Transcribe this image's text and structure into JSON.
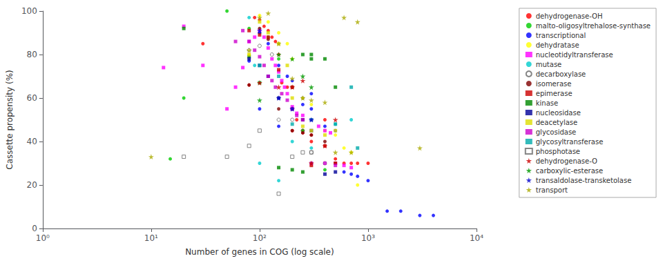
{
  "chart_data": {
    "type": "scatter",
    "xlabel": "Number of genes in COG (log scale)",
    "ylabel": "Cassette propensity (%)",
    "log": "x",
    "xlim": [
      1,
      10000
    ],
    "xticks": [
      {
        "value": 1,
        "label": "10⁰"
      },
      {
        "value": 10,
        "label": "10¹"
      },
      {
        "value": 100,
        "label": "10²"
      },
      {
        "value": 1000,
        "label": "10³"
      },
      {
        "value": 10000,
        "label": "10⁴"
      }
    ],
    "ylim": [
      0,
      100
    ],
    "yticks": [
      0,
      20,
      40,
      60,
      80,
      100
    ],
    "grid": false,
    "legend": "right",
    "series": [
      {
        "name": "dehydrogenase-OH",
        "color": "#ff0000",
        "marker": "circle",
        "values": [
          [
            30,
            85
          ],
          [
            90,
            97
          ],
          [
            100,
            96
          ],
          [
            110,
            93
          ],
          [
            120,
            91
          ],
          [
            130,
            88
          ],
          [
            140,
            86
          ],
          [
            150,
            80
          ],
          [
            160,
            67
          ],
          [
            180,
            65
          ],
          [
            200,
            55
          ],
          [
            220,
            50
          ],
          [
            250,
            45
          ],
          [
            300,
            40
          ],
          [
            400,
            50
          ],
          [
            500,
            32
          ],
          [
            600,
            30
          ],
          [
            700,
            30
          ],
          [
            800,
            30
          ],
          [
            1000,
            30
          ],
          [
            80,
            66
          ],
          [
            200,
            45
          ],
          [
            250,
            44
          ],
          [
            300,
            43
          ]
        ]
      },
      {
        "name": "malto-oligosyltrehalose-synthase",
        "color": "#00cc00",
        "marker": "circle",
        "values": [
          [
            15,
            32
          ],
          [
            20,
            60
          ],
          [
            50,
            100
          ],
          [
            80,
            92
          ],
          [
            100,
            90
          ],
          [
            120,
            88
          ],
          [
            150,
            78
          ],
          [
            200,
            65
          ],
          [
            250,
            45
          ],
          [
            300,
            30
          ],
          [
            400,
            27
          ]
        ]
      },
      {
        "name": "transcriptional",
        "color": "#0000ff",
        "marker": "circle",
        "values": [
          [
            80,
            77
          ],
          [
            100,
            90
          ],
          [
            120,
            85
          ],
          [
            150,
            75
          ],
          [
            180,
            70
          ],
          [
            200,
            68
          ],
          [
            250,
            57
          ],
          [
            300,
            55
          ],
          [
            400,
            47
          ],
          [
            500,
            45
          ],
          [
            600,
            26
          ],
          [
            700,
            25
          ],
          [
            800,
            24
          ],
          [
            1000,
            22
          ],
          [
            1500,
            8
          ],
          [
            2000,
            8
          ],
          [
            3000,
            6
          ],
          [
            4000,
            6
          ],
          [
            100,
            55
          ],
          [
            150,
            47
          ],
          [
            250,
            60
          ],
          [
            300,
            62
          ]
        ]
      },
      {
        "name": "dehydratase",
        "color": "#ffff00",
        "marker": "circle",
        "values": [
          [
            80,
            80
          ],
          [
            100,
            98
          ],
          [
            120,
            95
          ],
          [
            150,
            90
          ],
          [
            180,
            85
          ],
          [
            200,
            78
          ],
          [
            250,
            60
          ],
          [
            300,
            57
          ],
          [
            400,
            45
          ],
          [
            500,
            43
          ],
          [
            600,
            37
          ],
          [
            700,
            35
          ],
          [
            800,
            20
          ]
        ]
      },
      {
        "name": "nucleotidyltransferase",
        "color": "#ff00ff",
        "marker": "square",
        "values": [
          [
            13,
            74
          ],
          [
            20,
            93
          ],
          [
            30,
            75
          ],
          [
            50,
            55
          ],
          [
            60,
            65
          ],
          [
            70,
            74
          ],
          [
            80,
            86
          ],
          [
            90,
            88
          ],
          [
            100,
            91
          ],
          [
            110,
            88
          ],
          [
            120,
            83
          ],
          [
            130,
            78
          ],
          [
            140,
            75
          ],
          [
            150,
            72
          ],
          [
            160,
            68
          ],
          [
            170,
            65
          ],
          [
            180,
            62
          ],
          [
            200,
            56
          ],
          [
            220,
            53
          ],
          [
            250,
            52
          ],
          [
            300,
            50
          ],
          [
            350,
            47
          ],
          [
            400,
            45
          ],
          [
            450,
            44
          ],
          [
            500,
            30
          ],
          [
            600,
            29
          ],
          [
            700,
            28
          ]
        ]
      },
      {
        "name": "mutase",
        "color": "#00cccc",
        "marker": "circle",
        "values": [
          [
            80,
            97
          ],
          [
            100,
            30
          ],
          [
            150,
            22
          ],
          [
            200,
            40
          ],
          [
            300,
            37
          ],
          [
            500,
            48
          ],
          [
            700,
            50
          ],
          [
            90,
            75
          ]
        ]
      },
      {
        "name": "decarboxylase",
        "color": "#666666",
        "marker": "open_circle",
        "values": [
          [
            80,
            82
          ],
          [
            100,
            84
          ],
          [
            130,
            80
          ],
          [
            150,
            50
          ],
          [
            200,
            50
          ],
          [
            250,
            45
          ],
          [
            300,
            35
          ],
          [
            400,
            30
          ]
        ]
      },
      {
        "name": "isomerase",
        "color": "#800000",
        "marker": "circle",
        "values": [
          [
            80,
            66
          ],
          [
            100,
            92
          ],
          [
            120,
            87
          ],
          [
            150,
            55
          ],
          [
            200,
            45
          ],
          [
            250,
            44
          ],
          [
            300,
            43
          ],
          [
            400,
            40
          ],
          [
            500,
            30
          ]
        ]
      },
      {
        "name": "epimerase",
        "color": "#cc0000",
        "marker": "square",
        "values": [
          [
            80,
            91
          ],
          [
            100,
            89
          ],
          [
            120,
            88
          ],
          [
            150,
            73
          ],
          [
            200,
            65
          ],
          [
            250,
            50
          ],
          [
            300,
            29
          ],
          [
            400,
            38
          ],
          [
            500,
            30
          ]
        ]
      },
      {
        "name": "kinase",
        "color": "#008800",
        "marker": "square",
        "values": [
          [
            20,
            92
          ],
          [
            80,
            79
          ],
          [
            100,
            67
          ],
          [
            150,
            28
          ],
          [
            200,
            27
          ],
          [
            250,
            26
          ],
          [
            300,
            80
          ],
          [
            400,
            78
          ],
          [
            500,
            65
          ],
          [
            250,
            80
          ],
          [
            300,
            78
          ]
        ]
      },
      {
        "name": "nucleosidase",
        "color": "#000099",
        "marker": "square",
        "values": [
          [
            80,
            78
          ],
          [
            100,
            75
          ],
          [
            120,
            70
          ],
          [
            150,
            60
          ],
          [
            200,
            55
          ],
          [
            250,
            50
          ],
          [
            300,
            45
          ],
          [
            400,
            25
          ],
          [
            500,
            26
          ]
        ]
      },
      {
        "name": "deacetylase",
        "color": "#dddd00",
        "marker": "square",
        "values": [
          [
            80,
            80
          ],
          [
            100,
            95
          ],
          [
            120,
            90
          ],
          [
            150,
            85
          ],
          [
            180,
            75
          ],
          [
            200,
            60
          ],
          [
            250,
            47
          ],
          [
            300,
            45
          ],
          [
            400,
            43
          ],
          [
            500,
            45
          ]
        ]
      },
      {
        "name": "glycosidase",
        "color": "#cc00cc",
        "marker": "square",
        "values": [
          [
            60,
            86
          ],
          [
            70,
            91
          ],
          [
            80,
            86
          ],
          [
            90,
            82
          ],
          [
            100,
            79
          ],
          [
            110,
            75
          ],
          [
            120,
            70
          ],
          [
            130,
            68
          ],
          [
            140,
            65
          ],
          [
            160,
            62
          ],
          [
            180,
            59
          ],
          [
            200,
            55
          ],
          [
            220,
            52
          ],
          [
            300,
            30
          ],
          [
            400,
            30
          ],
          [
            500,
            29
          ],
          [
            250,
            50
          ]
        ]
      },
      {
        "name": "glycosyltransferase",
        "color": "#00aaaa",
        "marker": "square",
        "values": [
          [
            100,
            75
          ],
          [
            150,
            70
          ],
          [
            200,
            48
          ],
          [
            300,
            50
          ],
          [
            500,
            48
          ],
          [
            700,
            65
          ],
          [
            800,
            37
          ]
        ]
      },
      {
        "name": "phosphotase",
        "color": "#666666",
        "marker": "open_square",
        "values": [
          [
            20,
            33
          ],
          [
            50,
            33
          ],
          [
            80,
            38
          ],
          [
            100,
            45
          ],
          [
            150,
            16
          ],
          [
            200,
            33
          ],
          [
            250,
            35
          ],
          [
            300,
            35
          ]
        ]
      },
      {
        "name": "dehydrogenase-O",
        "color": "#cc0000",
        "marker": "star",
        "values": [
          [
            100,
            67
          ],
          [
            150,
            65
          ],
          [
            200,
            65
          ],
          [
            300,
            30
          ],
          [
            400,
            38
          ],
          [
            500,
            50
          ],
          [
            250,
            68
          ]
        ]
      },
      {
        "name": "carboxylic-esterase",
        "color": "#009900",
        "marker": "star",
        "values": [
          [
            100,
            59
          ],
          [
            150,
            80
          ],
          [
            200,
            78
          ],
          [
            300,
            65
          ],
          [
            250,
            70
          ]
        ]
      },
      {
        "name": "transaldolase-transketolase",
        "color": "#0000cc",
        "marker": "star",
        "values": [
          [
            100,
            91
          ],
          [
            150,
            60
          ],
          [
            200,
            55
          ],
          [
            300,
            50
          ]
        ]
      },
      {
        "name": "transport",
        "color": "#aaaa00",
        "marker": "star",
        "values": [
          [
            10,
            33
          ],
          [
            80,
            82
          ],
          [
            100,
            97
          ],
          [
            120,
            99
          ],
          [
            150,
            85
          ],
          [
            200,
            69
          ],
          [
            250,
            60
          ],
          [
            300,
            59
          ],
          [
            400,
            58
          ],
          [
            500,
            35
          ],
          [
            700,
            35
          ],
          [
            3000,
            37
          ],
          [
            600,
            97
          ],
          [
            800,
            95
          ]
        ]
      }
    ]
  }
}
